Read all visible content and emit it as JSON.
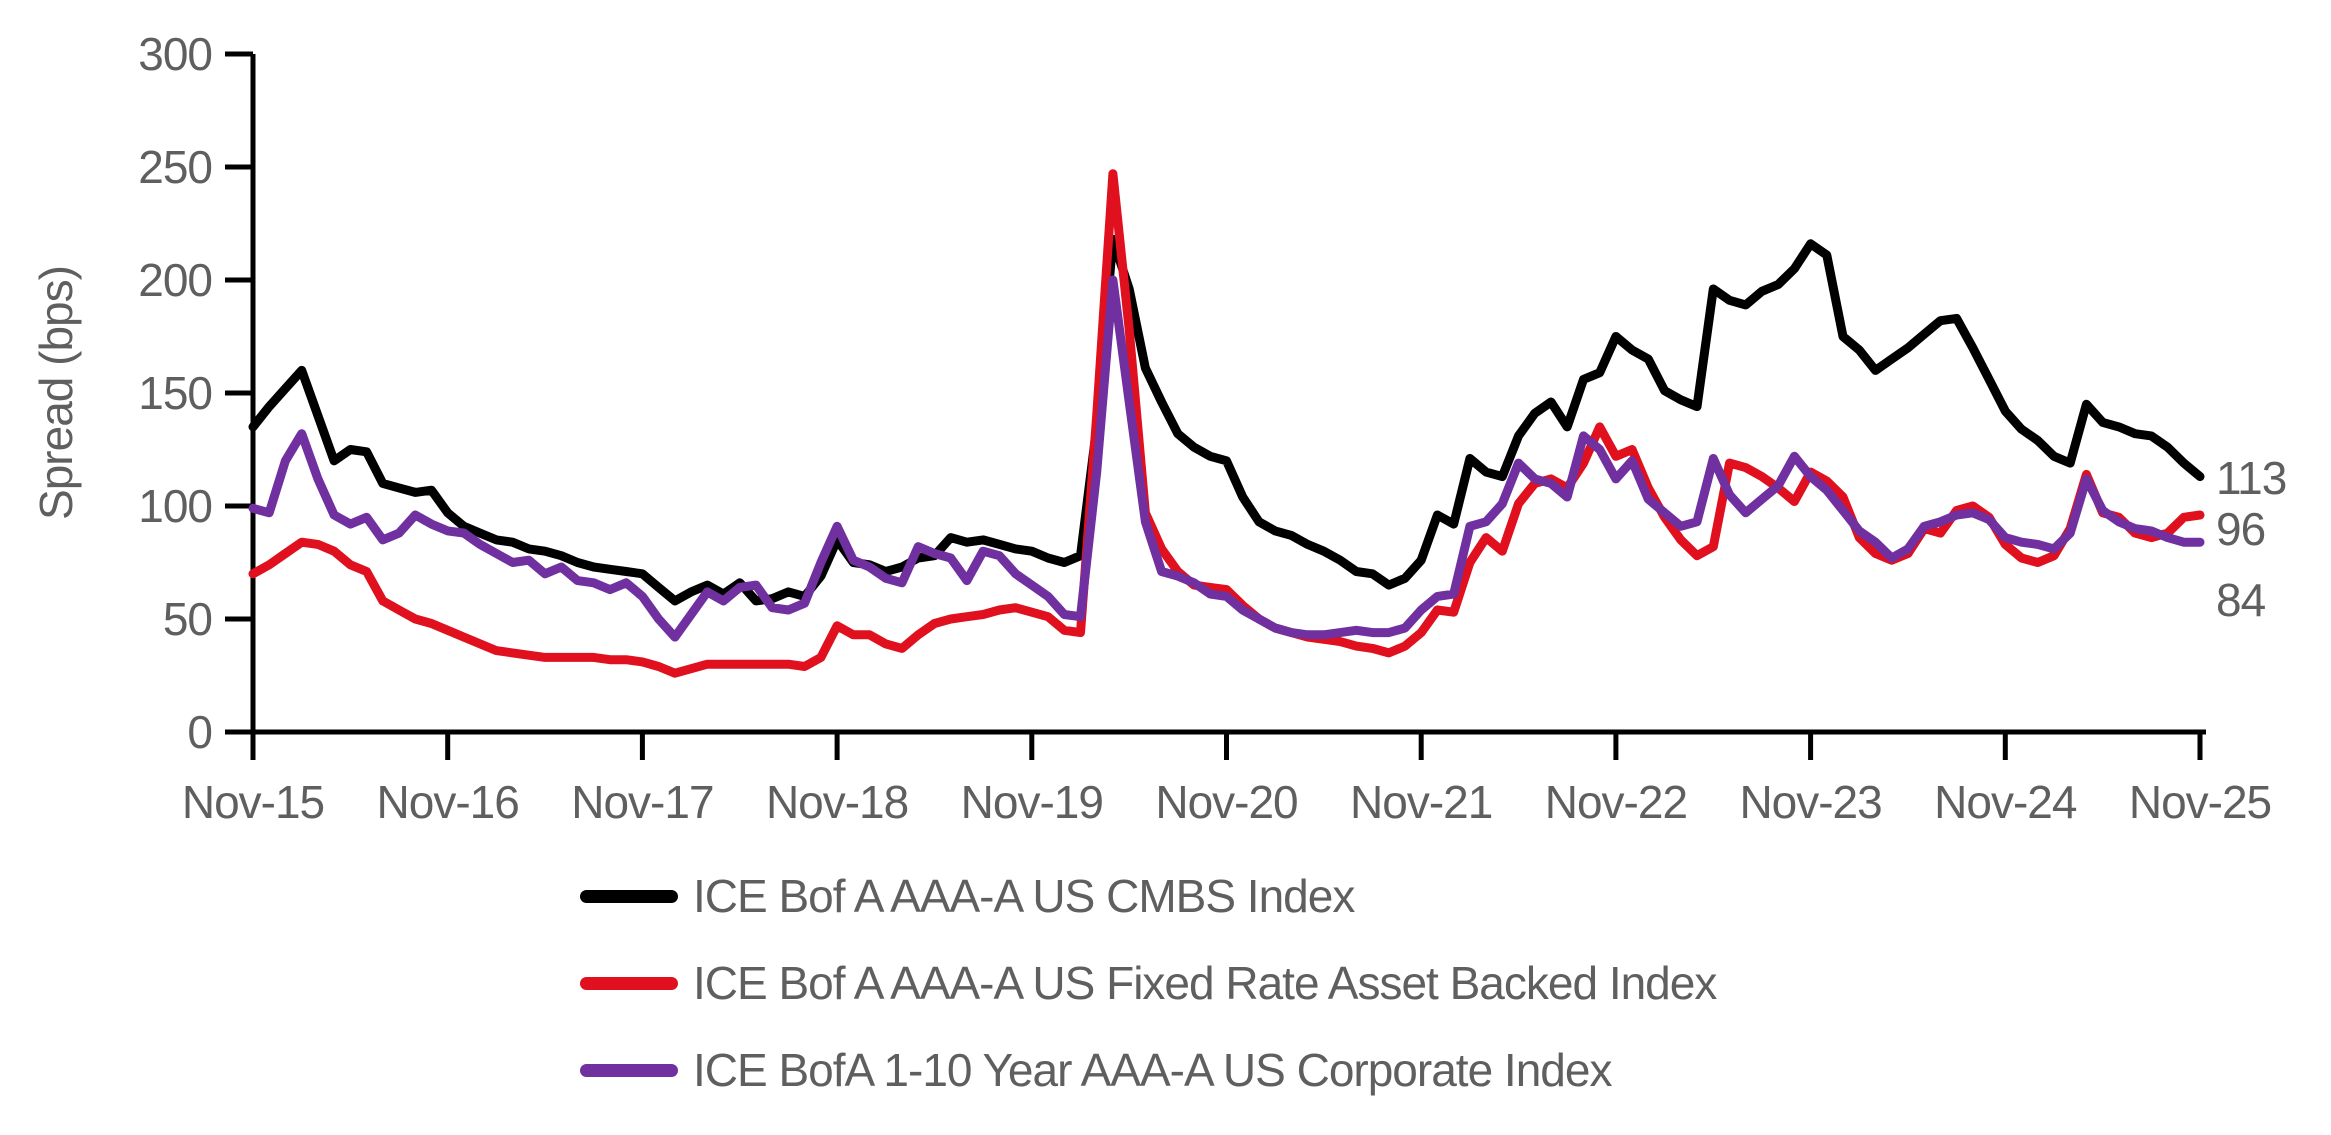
{
  "chart_data": {
    "type": "line",
    "title": "",
    "ylabel": "Spread (bps)",
    "xlabel": "",
    "ylim": [
      0,
      300
    ],
    "y_ticks": [
      0,
      50,
      100,
      150,
      200,
      250,
      300
    ],
    "x_tick_labels": [
      "Nov-15",
      "Nov-16",
      "Nov-17",
      "Nov-18",
      "Nov-19",
      "Nov-20",
      "Nov-21",
      "Nov-22",
      "Nov-23",
      "Nov-24",
      "Nov-25"
    ],
    "x_start": "Nov-2015",
    "x_end": "Nov-2025",
    "x_frequency": "monthly",
    "grid": false,
    "legend_position": "bottom-left",
    "axis_color": "#000000",
    "text_color": "#5f5f5f",
    "series": [
      {
        "name": "ICE Bof A AAA-A US CMBS Index",
        "color": "#000000",
        "end_label": "113",
        "values": [
          135,
          144,
          152,
          160,
          140,
          120,
          125,
          124,
          110,
          108,
          106,
          107,
          97,
          91,
          88,
          85,
          84,
          81,
          80,
          78,
          75,
          73,
          72,
          71,
          70,
          64,
          58,
          62,
          65,
          61,
          66,
          58,
          59,
          62,
          60,
          69,
          85,
          75,
          74,
          71,
          73,
          77,
          78,
          86,
          84,
          85,
          83,
          81,
          80,
          77,
          75,
          78,
          135,
          218,
          196,
          161,
          146,
          132,
          126,
          122,
          120,
          104,
          93,
          89,
          87,
          83,
          80,
          76,
          71,
          70,
          65,
          68,
          76,
          96,
          92,
          121,
          115,
          113,
          131,
          141,
          146,
          135,
          156,
          159,
          175,
          169,
          165,
          151,
          147,
          144,
          196,
          191,
          189,
          195,
          198,
          205,
          216,
          211,
          175,
          169,
          160,
          165,
          170,
          176,
          182,
          183,
          170,
          156,
          142,
          134,
          129,
          122,
          119,
          145,
          137,
          135,
          132,
          131,
          126,
          119,
          113
        ]
      },
      {
        "name": "ICE Bof A AAA-A US Fixed Rate Asset Backed Index",
        "color": "#e0101e",
        "end_label": "96",
        "values": [
          70,
          74,
          79,
          84,
          83,
          80,
          74,
          71,
          58,
          54,
          50,
          48,
          45,
          42,
          39,
          36,
          35,
          34,
          33,
          33,
          33,
          33,
          32,
          32,
          31,
          29,
          26,
          28,
          30,
          30,
          30,
          30,
          30,
          30,
          29,
          33,
          47,
          43,
          43,
          39,
          37,
          43,
          48,
          50,
          51,
          52,
          54,
          55,
          53,
          51,
          45,
          44,
          140,
          247,
          178,
          97,
          81,
          71,
          65,
          64,
          63,
          56,
          50,
          46,
          44,
          42,
          41,
          40,
          38,
          37,
          35,
          38,
          44,
          54,
          53,
          75,
          86,
          80,
          101,
          110,
          112,
          108,
          119,
          135,
          122,
          125,
          108,
          95,
          85,
          78,
          82,
          119,
          117,
          113,
          108,
          102,
          115,
          111,
          104,
          86,
          79,
          76,
          79,
          90,
          88,
          98,
          100,
          95,
          83,
          77,
          75,
          78,
          90,
          114,
          97,
          95,
          88,
          86,
          88,
          95,
          96
        ]
      },
      {
        "name": "ICE BofA 1-10 Year AAA-A US Corporate Index",
        "color": "#7030a0",
        "end_label": "84",
        "values": [
          99,
          97,
          120,
          132,
          112,
          96,
          92,
          95,
          85,
          88,
          96,
          92,
          89,
          88,
          83,
          79,
          75,
          76,
          70,
          73,
          67,
          66,
          63,
          66,
          60,
          50,
          42,
          52,
          62,
          58,
          64,
          65,
          55,
          54,
          57,
          75,
          91,
          76,
          73,
          68,
          66,
          82,
          79,
          77,
          67,
          80,
          78,
          70,
          65,
          60,
          52,
          51,
          115,
          200,
          146,
          93,
          71,
          69,
          66,
          61,
          60,
          54,
          50,
          46,
          44,
          43,
          43,
          44,
          45,
          44,
          44,
          46,
          54,
          60,
          61,
          91,
          93,
          101,
          119,
          112,
          110,
          104,
          131,
          125,
          112,
          120,
          103,
          97,
          91,
          93,
          121,
          105,
          97,
          103,
          109,
          122,
          113,
          107,
          98,
          89,
          84,
          77,
          81,
          91,
          93,
          96,
          97,
          94,
          86,
          84,
          83,
          81,
          88,
          112,
          98,
          93,
          90,
          89,
          86,
          84,
          84
        ]
      }
    ]
  }
}
